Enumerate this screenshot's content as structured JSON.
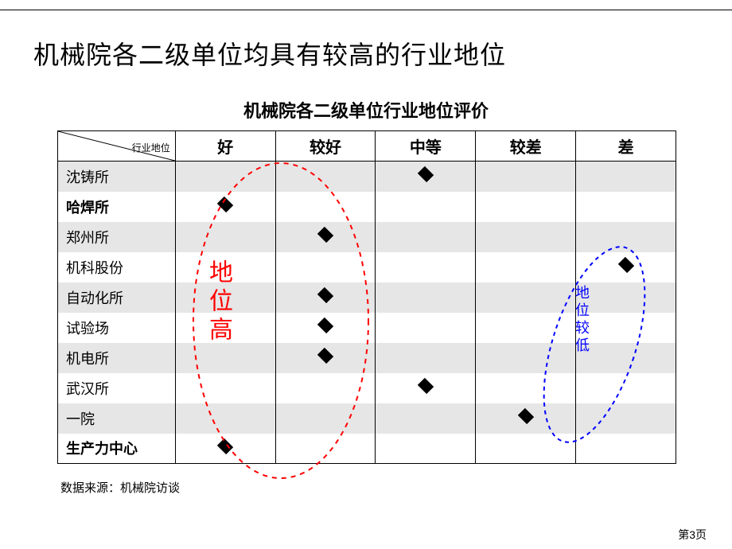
{
  "slide": {
    "title": "机械院各二级单位均具有较高的行业地位",
    "subtitle": "机械院各二级单位行业地位评价",
    "source": "数据来源：机械院访谈",
    "page": "第3页",
    "corner_label": "行业地位"
  },
  "columns": [
    "好",
    "较好",
    "中等",
    "较差",
    "差"
  ],
  "rows": [
    {
      "label": "沈铸所",
      "bold": false,
      "marks": [
        0,
        0,
        1,
        0,
        0
      ]
    },
    {
      "label": "哈焊所",
      "bold": true,
      "marks": [
        1,
        0,
        0,
        0,
        0
      ]
    },
    {
      "label": "郑州所",
      "bold": false,
      "marks": [
        0,
        1,
        0,
        0,
        0
      ]
    },
    {
      "label": "机科股份",
      "bold": false,
      "marks": [
        0,
        0,
        0,
        0,
        1
      ]
    },
    {
      "label": "自动化所",
      "bold": false,
      "marks": [
        0,
        1,
        0,
        0,
        0
      ]
    },
    {
      "label": "试验场",
      "bold": false,
      "marks": [
        0,
        1,
        0,
        0,
        0
      ]
    },
    {
      "label": "机电所",
      "bold": false,
      "marks": [
        0,
        1,
        0,
        0,
        0
      ]
    },
    {
      "label": "武汉所",
      "bold": false,
      "marks": [
        0,
        0,
        1,
        0,
        0
      ]
    },
    {
      "label": "一院",
      "bold": false,
      "marks": [
        0,
        0,
        0,
        1,
        0
      ]
    },
    {
      "label": "生产力中心",
      "bold": true,
      "marks": [
        1,
        0,
        0,
        0,
        0
      ]
    }
  ],
  "annotations": {
    "red": {
      "text": "地位高",
      "stroke": "#ff0000",
      "dash": "6,6",
      "width": 2
    },
    "blue": {
      "text": "地位较低",
      "stroke": "#0000ff",
      "dash": "5,5",
      "width": 2
    }
  },
  "stripe_colors": {
    "odd": "#e6e6e6",
    "even": "#ffffff"
  },
  "marker_color": "#000000"
}
